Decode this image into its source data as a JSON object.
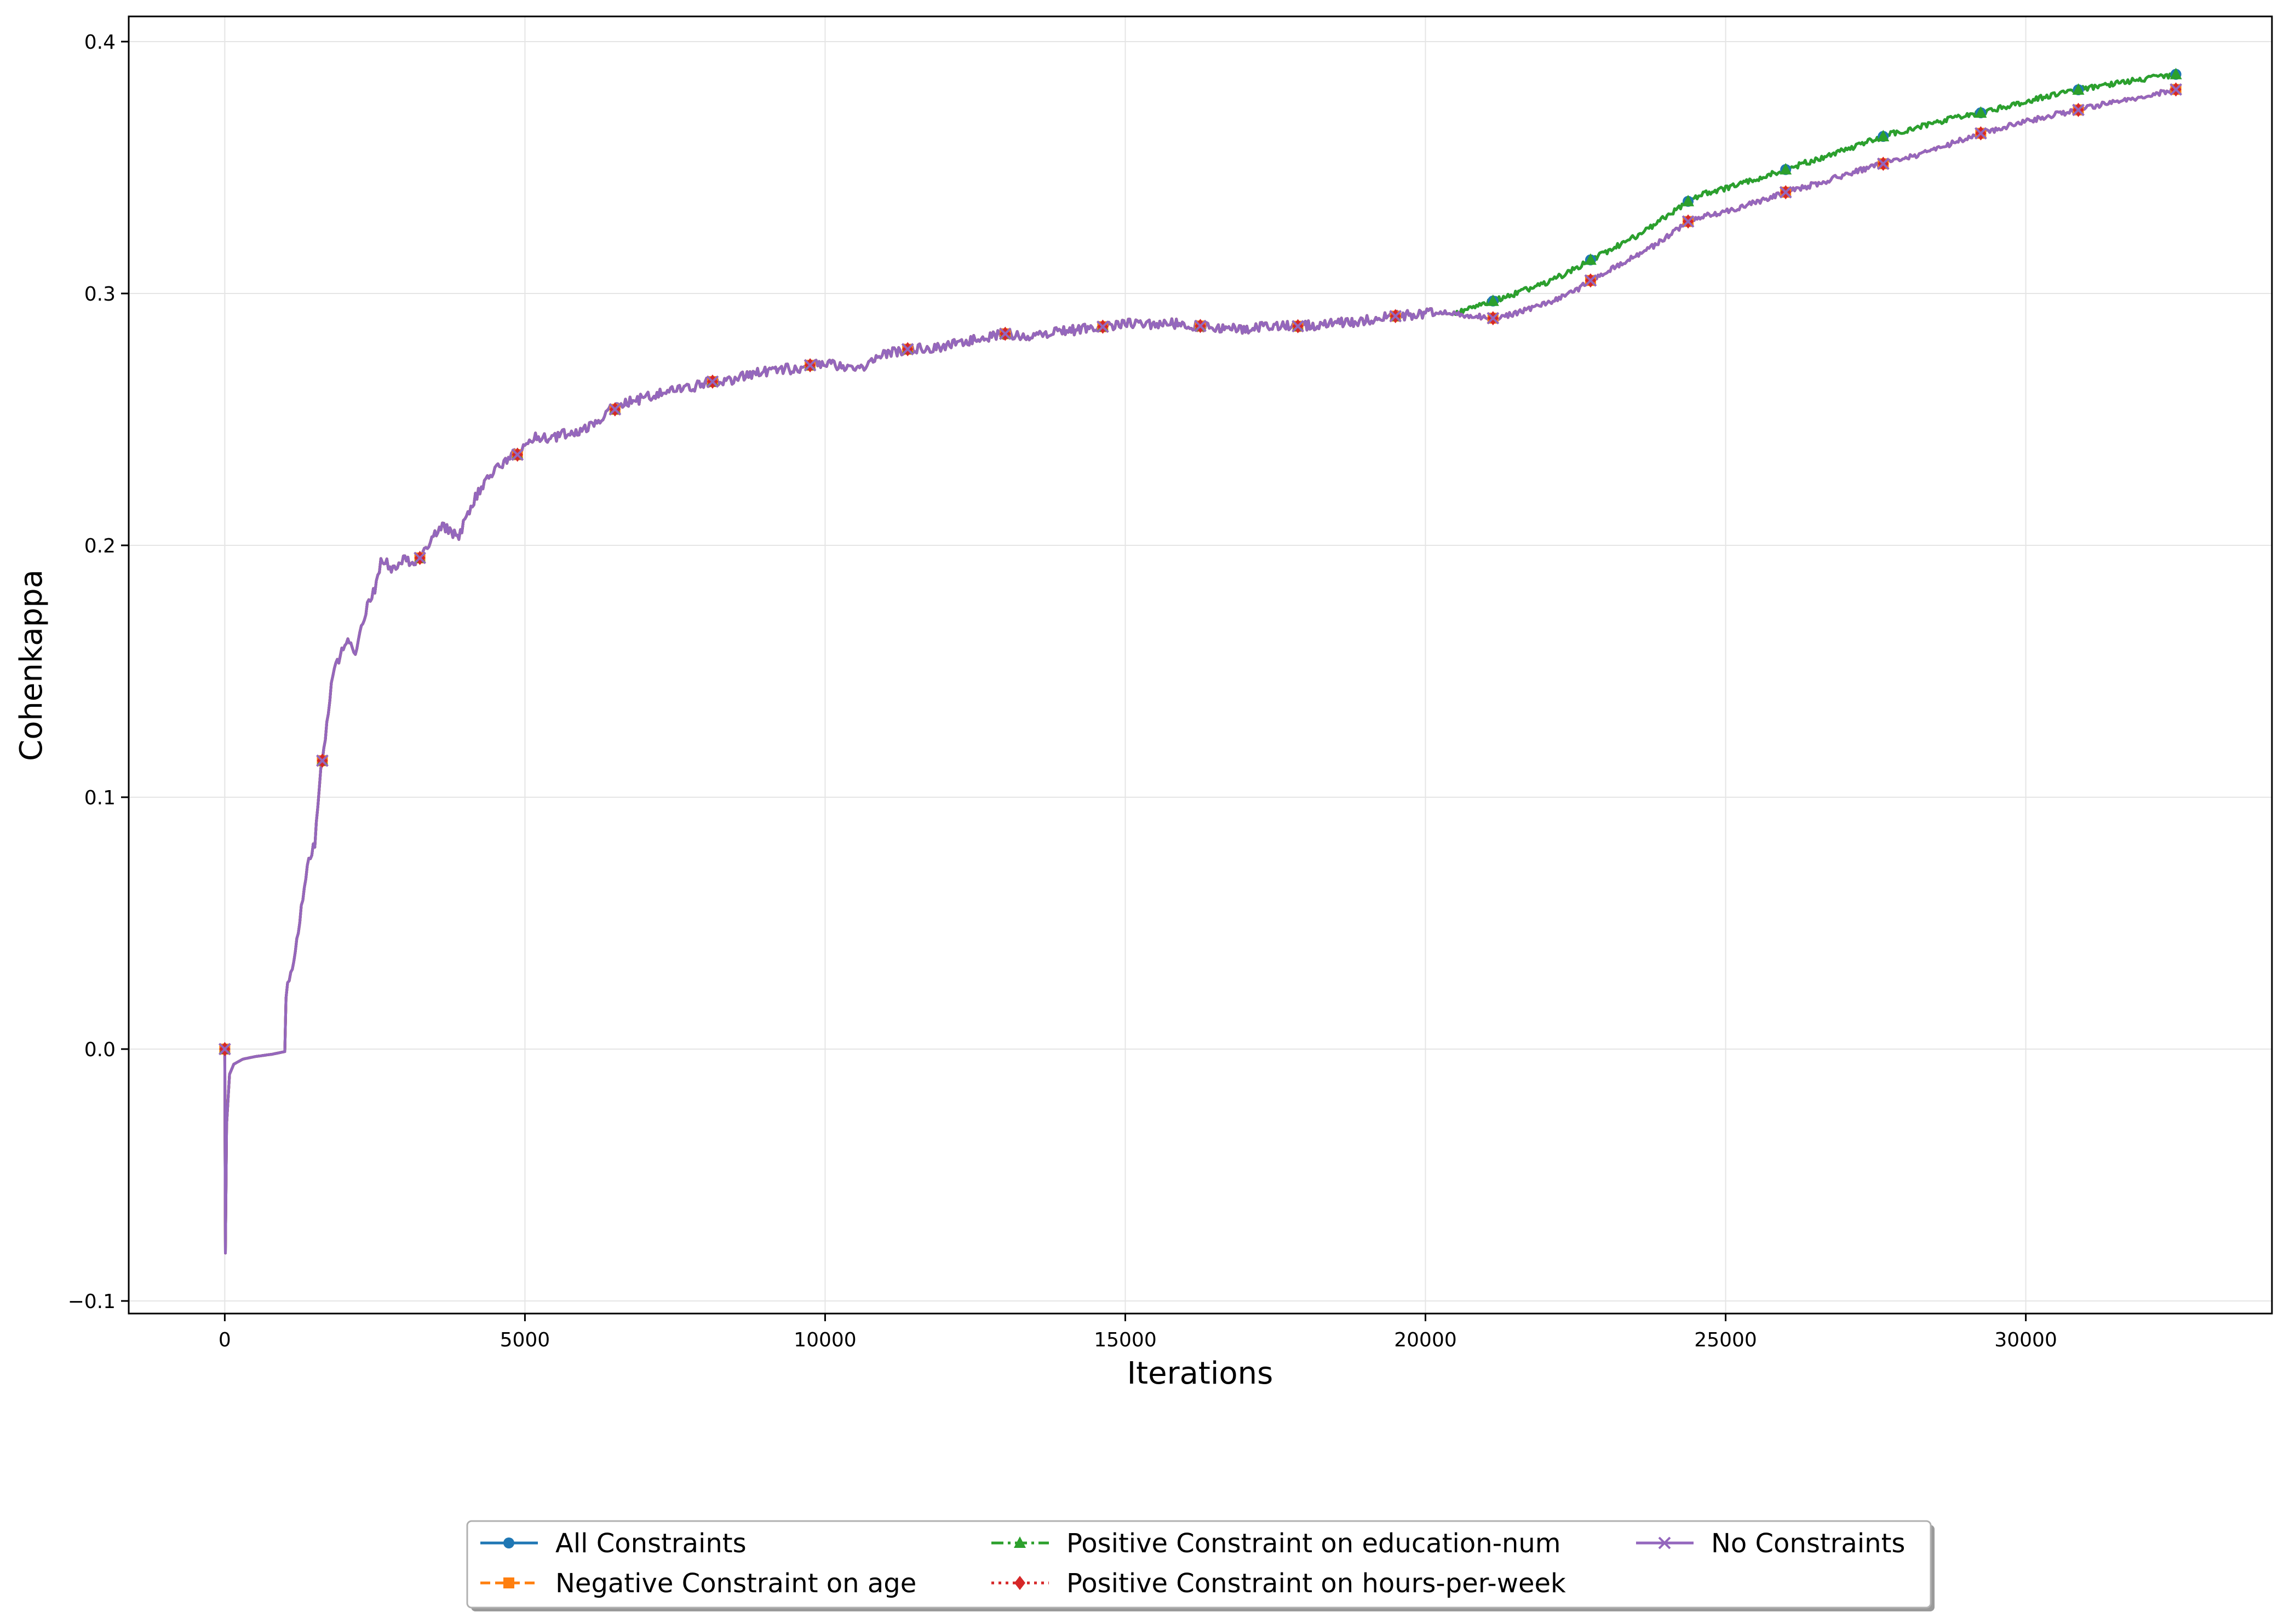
{
  "chart_data": {
    "type": "line",
    "title": "",
    "xlabel": "Iterations",
    "ylabel": "Cohenkappa",
    "xlim": [
      -1600,
      34100
    ],
    "ylim": [
      -0.105,
      0.41
    ],
    "xticks": [
      0,
      5000,
      10000,
      15000,
      20000,
      25000,
      30000
    ],
    "xtick_labels": [
      "0",
      "5000",
      "10000",
      "15000",
      "20000",
      "25000",
      "30000"
    ],
    "yticks": [
      -0.1,
      0.0,
      0.1,
      0.2,
      0.3,
      0.4
    ],
    "ytick_labels": [
      "−0.1",
      "0.0",
      "0.1",
      "0.2",
      "0.3",
      "0.4"
    ],
    "grid": true,
    "legend_position": "bottom-center",
    "colors": {
      "all": "#1f77b4",
      "neg_age": "#ff7f0e",
      "pos_edu": "#2ca02c",
      "pos_hours": "#d62728",
      "none": "#9467bd",
      "grid": "#e5e5e5"
    },
    "series": [
      {
        "name": "All Constraints",
        "color": "#1f77b4",
        "marker": "circle",
        "dash": "solid",
        "group": "upper"
      },
      {
        "name": "Negative Constraint on age",
        "color": "#ff7f0e",
        "marker": "square",
        "dash": "dashed",
        "group": "lower"
      },
      {
        "name": "Positive Constraint on education-num",
        "color": "#2ca02c",
        "marker": "triangle",
        "dash": "dashdot",
        "group": "upper"
      },
      {
        "name": "Positive Constraint on hours-per-week",
        "color": "#d62728",
        "marker": "diamond",
        "dash": "dotted",
        "group": "lower"
      },
      {
        "name": "No Constraints",
        "color": "#9467bd",
        "marker": "x",
        "dash": "solid",
        "group": "lower"
      }
    ],
    "shared_curve": {
      "x": [
        0,
        10,
        30,
        80,
        150,
        300,
        500,
        800,
        1000,
        1020,
        1100,
        1200,
        1300,
        1400,
        1500,
        1600,
        1700,
        1800,
        1900,
        2000,
        2100,
        2200,
        2300,
        2400,
        2500,
        2600,
        2700,
        2800,
        2900,
        3000,
        3100,
        3200,
        3300,
        3400,
        3500,
        3600,
        3700,
        3800,
        3900,
        4000,
        4200,
        4400,
        4600,
        4800,
        4900,
        5000,
        5200,
        5400,
        5600,
        5800,
        6000,
        6200,
        6400,
        6500,
        6700,
        6900,
        7200,
        7500,
        7800,
        8100,
        8400,
        8700,
        9000,
        9300,
        9600,
        9800,
        10000,
        10300,
        10600,
        10800,
        11000,
        11400,
        11800,
        12200,
        12600,
        13000,
        13300,
        13600,
        14000,
        14300,
        14700,
        15000,
        15400,
        15800,
        16300,
        16600,
        17000,
        17400,
        17900,
        18400,
        18900,
        19500,
        19900,
        20200,
        20500
      ],
      "y": [
        0.0,
        -0.081,
        -0.03,
        -0.01,
        -0.006,
        -0.004,
        -0.003,
        -0.002,
        -0.001,
        0.022,
        0.03,
        0.042,
        0.06,
        0.075,
        0.082,
        0.11,
        0.128,
        0.15,
        0.155,
        0.162,
        0.16,
        0.158,
        0.17,
        0.178,
        0.182,
        0.193,
        0.193,
        0.19,
        0.192,
        0.195,
        0.193,
        0.194,
        0.196,
        0.2,
        0.204,
        0.208,
        0.207,
        0.205,
        0.203,
        0.21,
        0.22,
        0.228,
        0.232,
        0.236,
        0.236,
        0.24,
        0.243,
        0.242,
        0.244,
        0.245,
        0.246,
        0.249,
        0.254,
        0.254,
        0.257,
        0.258,
        0.26,
        0.262,
        0.263,
        0.265,
        0.265,
        0.268,
        0.269,
        0.27,
        0.27,
        0.272,
        0.272,
        0.271,
        0.27,
        0.273,
        0.276,
        0.278,
        0.278,
        0.28,
        0.282,
        0.284,
        0.283,
        0.284,
        0.285,
        0.286,
        0.287,
        0.288,
        0.288,
        0.288,
        0.287,
        0.286,
        0.286,
        0.287,
        0.287,
        0.288,
        0.289,
        0.291,
        0.292,
        0.292,
        0.292
      ]
    },
    "upper_branch": {
      "x": [
        20500,
        21000,
        21500,
        22000,
        22500,
        22800,
        23300,
        23800,
        24400,
        24700,
        25200,
        25600,
        26100,
        26600,
        27100,
        27700,
        28200,
        28700,
        29300,
        29800,
        30300,
        30900,
        31400,
        31900,
        32500
      ],
      "y": [
        0.292,
        0.296,
        0.3,
        0.304,
        0.31,
        0.314,
        0.32,
        0.327,
        0.337,
        0.34,
        0.343,
        0.346,
        0.35,
        0.354,
        0.358,
        0.363,
        0.366,
        0.369,
        0.372,
        0.375,
        0.378,
        0.381,
        0.383,
        0.385,
        0.387
      ]
    },
    "lower_branch": {
      "x": [
        20500,
        20800,
        21200,
        21600,
        22000,
        22500,
        22800,
        23300,
        23800,
        24400,
        24700,
        25200,
        25600,
        26100,
        26600,
        27100,
        27700,
        28200,
        28700,
        29300,
        29800,
        30300,
        30900,
        31400,
        31900,
        32500
      ],
      "y": [
        0.292,
        0.291,
        0.29,
        0.293,
        0.296,
        0.301,
        0.306,
        0.312,
        0.319,
        0.329,
        0.331,
        0.334,
        0.337,
        0.341,
        0.344,
        0.348,
        0.352,
        0.355,
        0.359,
        0.364,
        0.367,
        0.37,
        0.373,
        0.376,
        0.378,
        0.381
      ]
    },
    "marker_x": [
      0,
      1625,
      3250,
      4875,
      6500,
      8125,
      9750,
      11375,
      13000,
      14625,
      16250,
      17875,
      19500,
      21125,
      22750,
      24375,
      26000,
      27625,
      29250,
      30875,
      32500
    ]
  }
}
